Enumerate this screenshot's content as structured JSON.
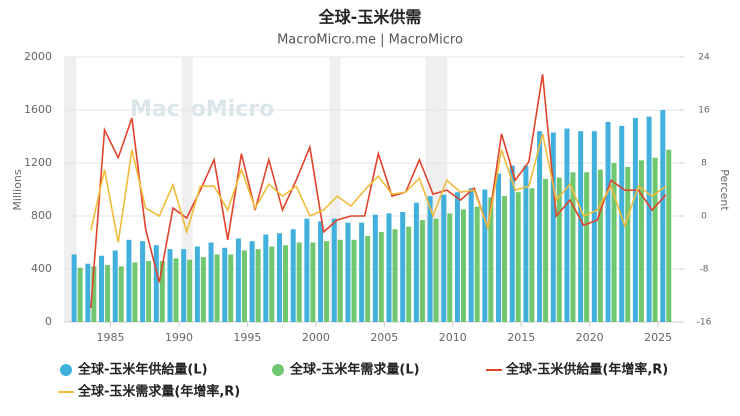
{
  "chart_data": {
    "type": "bar_line",
    "title": "全球-玉米供需",
    "subtitle": "MacroMicro.me | MacroMicro",
    "watermark": "MacroMicro",
    "y_label": "Millions",
    "y2_label": "Percent",
    "x": [
      1983,
      1984,
      1985,
      1986,
      1987,
      1988,
      1989,
      1990,
      1991,
      1992,
      1993,
      1994,
      1995,
      1996,
      1997,
      1998,
      1999,
      2000,
      2001,
      2002,
      2003,
      2004,
      2005,
      2006,
      2007,
      2008,
      2009,
      2010,
      2011,
      2012,
      2013,
      2014,
      2015,
      2016,
      2017,
      2018,
      2019,
      2020,
      2021,
      2022,
      2023,
      2024,
      2025,
      2026
    ],
    "xlim": [
      1981.6,
      2026.6
    ],
    "xticks": [
      1985,
      1990,
      1995,
      2000,
      2005,
      2010,
      2015,
      2020,
      2025
    ],
    "ylim": [
      0,
      2000
    ],
    "yticks": [
      0,
      400,
      800,
      1200,
      1600,
      2000
    ],
    "y2lim": [
      -16,
      24
    ],
    "y2ticks": [
      -16,
      -8,
      0,
      8,
      16,
      24
    ],
    "shaded_periods": [
      [
        1981.6,
        1982.5
      ],
      [
        1990.2,
        1991
      ],
      [
        2001,
        2001.8
      ],
      [
        2008,
        2009.6
      ]
    ],
    "series": [
      {
        "name": "全球-玉米年供給量(L)",
        "kind": "bar",
        "color": "#41b0dc",
        "values": [
          510,
          440,
          500,
          540,
          620,
          610,
          580,
          550,
          550,
          570,
          600,
          560,
          630,
          610,
          660,
          670,
          700,
          780,
          760,
          780,
          750,
          750,
          810,
          820,
          830,
          900,
          950,
          960,
          980,
          1010,
          1000,
          1120,
          1180,
          1180,
          1440,
          1430,
          1460,
          1440,
          1440,
          1510,
          1480,
          1540,
          1550,
          1600
        ]
      },
      {
        "name": "全球-玉米年需求量(L)",
        "kind": "bar",
        "color": "#70c770",
        "values": [
          410,
          420,
          430,
          420,
          450,
          460,
          460,
          480,
          470,
          490,
          510,
          510,
          540,
          550,
          570,
          580,
          600,
          600,
          610,
          620,
          620,
          650,
          680,
          700,
          720,
          770,
          780,
          820,
          850,
          870,
          940,
          950,
          980,
          1010,
          1080,
          1090,
          1130,
          1130,
          1150,
          1200,
          1170,
          1220,
          1240,
          1300
        ]
      },
      {
        "name": "全球-玉米供給量(年增率,R)",
        "kind": "line",
        "axis": "y2",
        "color": "#e0442c",
        "values": [
          null,
          -13.9,
          13,
          8.8,
          14.8,
          -2,
          -10,
          1.2,
          -0.3,
          3.9,
          8.5,
          -3.6,
          9.4,
          0.9,
          8.5,
          0.9,
          5.4,
          10.4,
          -2.4,
          -0.6,
          0,
          0,
          9.4,
          3,
          3.6,
          8.5,
          3.3,
          3.9,
          2.4,
          4.2,
          -1.8,
          12.4,
          5.4,
          8.2,
          21.4,
          0,
          2.4,
          -1.4,
          -0.6,
          5.4,
          3.9,
          3.9,
          0.9,
          3.2
        ]
      },
      {
        "name": "全球-玉米需求量(年增率,R)",
        "kind": "line",
        "axis": "y2",
        "color": "#f0bc3c",
        "values": [
          null,
          -2.2,
          7,
          -4,
          10,
          1.2,
          0,
          4.7,
          -2.4,
          4.5,
          4.5,
          0.9,
          7,
          1.2,
          4.8,
          3,
          4.5,
          0,
          0.9,
          3,
          1.5,
          3.9,
          6,
          3.3,
          3.6,
          5.7,
          0,
          5.4,
          3.6,
          3.9,
          -1.8,
          10,
          3.9,
          4.5,
          12.4,
          2.4,
          4.8,
          0,
          0.9,
          4.5,
          -1.5,
          4.5,
          3,
          4.5
        ]
      }
    ]
  }
}
